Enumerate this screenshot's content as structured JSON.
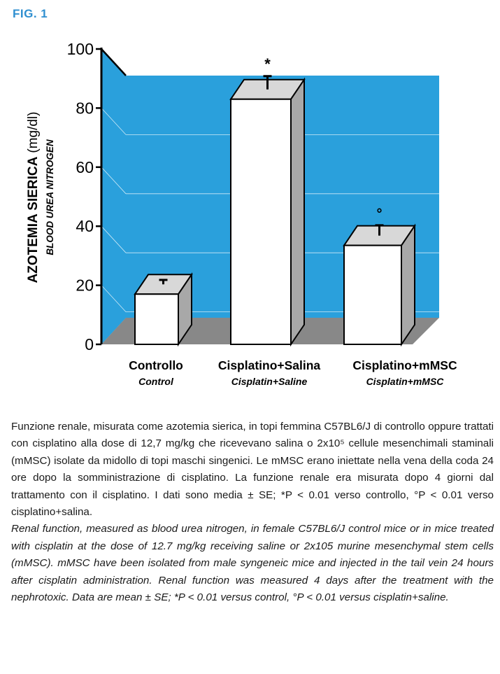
{
  "figure_label": "FIG. 1",
  "chart_data": {
    "type": "bar",
    "ylabel": "AZOTEMIA SIERICA",
    "ylabel_unit": "(mg/dl)",
    "ylabel_en": "BLOOD UREA NITROGEN",
    "ylim": [
      0,
      100
    ],
    "yticks": [
      0,
      20,
      40,
      60,
      80,
      100
    ],
    "grid": true,
    "categories": [
      {
        "label": "Controllo",
        "label_en": "Control"
      },
      {
        "label": "Cisplatino+Salina",
        "label_en": "Cisplatin+Saline"
      },
      {
        "label": "Cisplatino+mMSC",
        "label_en": "Cisplatin+mMSC"
      }
    ],
    "values": [
      17,
      83,
      33.5
    ],
    "errors": [
      1.5,
      4.5,
      3.5
    ],
    "annotations": [
      "",
      "*",
      "°"
    ],
    "colors": {
      "background": "#2aa0dc",
      "floor": "#888888",
      "bar": "#ffffff",
      "bar_side": "#a8a8a8",
      "bar_top": "#d8d8d8"
    }
  },
  "caption": {
    "it": "Funzione renale, misurata come azotemia sierica, in topi femmina C57BL6/J di controllo oppure trattati con cisplatino alla dose di 12,7 mg/kg che ricevevano salina o 2x10⁵ cellule mesenchimali staminali (mMSC) isolate da midollo di topi maschi singenici. Le mMSC erano iniettate nella vena della coda 24 ore dopo la somministrazione di cisplatino. La funzione renale era misurata dopo 4 giorni dal trattamento con il cisplatino. I dati sono media ± SE; *P < 0.01 verso controllo, °P < 0.01 verso cisplatino+salina.",
    "en": "Renal function, measured as blood urea nitrogen, in female C57BL6/J control mice or in mice treated with cisplatin at the dose of 12.7 mg/kg receiving saline or 2x105 murine mesenchymal stem cells (mMSC). mMSC have been isolated from male syngeneic mice and injected in the tail vein 24 hours after cisplatin administration. Renal function was measured 4 days after the treatment with the nephrotoxic. Data are mean ± SE; *P < 0.01 versus control, °P < 0.01 versus cisplatin+saline."
  }
}
